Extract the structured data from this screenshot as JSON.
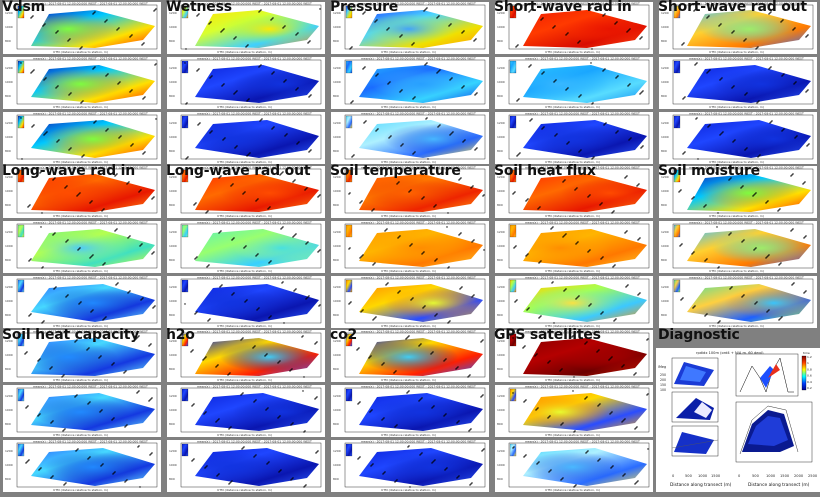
{
  "panels": [
    {
      "title": "Vdsm",
      "maps": [
        "jet-mix",
        "jet-mix",
        "jet-mix"
      ]
    },
    {
      "title": "Wetness",
      "maps": [
        "yellow-mix",
        "blue",
        "blue"
      ]
    },
    {
      "title": "Pressure",
      "maps": [
        "blue-yellow",
        "cyan-blue",
        "cyan-mix"
      ]
    },
    {
      "title": "Short-wave rad in",
      "maps": [
        "red",
        "cyan",
        "blue"
      ]
    },
    {
      "title": "Short-wave rad out",
      "maps": [
        "cyan-yellow",
        "blue",
        "blue"
      ]
    },
    {
      "title": "Long-wave rad in",
      "maps": [
        "red-orange",
        "green-yellow",
        "blue-cyan"
      ]
    },
    {
      "title": "Long-wave rad out",
      "maps": [
        "red-orange",
        "green-cyan",
        "blue"
      ]
    },
    {
      "title": "Soil temperature",
      "maps": [
        "orange-red",
        "orange",
        "orange-mix"
      ]
    },
    {
      "title": "Soil heat flux",
      "maps": [
        "red-orange",
        "orange",
        "yellow-cyan"
      ]
    },
    {
      "title": "Soil moisture",
      "maps": [
        "jet-mix",
        "cyan-yellow",
        "green-mix"
      ]
    },
    {
      "title": "Soil heat capacity",
      "maps": [
        "blue-cyan",
        "blue-cyan",
        "blue-cyan"
      ]
    },
    {
      "title": "h2o",
      "maps": [
        "blue-hot",
        "blue",
        "blue"
      ]
    },
    {
      "title": "co2",
      "maps": [
        "blue-hot",
        "blue",
        "blue"
      ]
    },
    {
      "title": "GPS satellites",
      "maps": [
        "darkred",
        "orange-mix",
        "cyan-mix"
      ]
    }
  ],
  "diagnostic": {
    "title": "Diagnostic",
    "header_text": "rpdidx 100m (ord4 + N/A m, 60 deg))",
    "xlabel_left": "Distance along transect (m)",
    "xlabel_right": "Distance along transect (m)",
    "xticks_left": [
      "0",
      "500",
      "1000",
      "1500"
    ],
    "xticks_right": [
      "0",
      "500",
      "1000",
      "1500",
      "2000",
      "2500"
    ],
    "yticks_left": [
      "250",
      "200",
      "150",
      "100"
    ],
    "legend_label": "time",
    "legend_ticks": [
      "1.2",
      "1",
      "0.8",
      "0.6",
      "0.4",
      "0.2"
    ]
  },
  "colors": {
    "background": "#808080",
    "panel": "#ffffff",
    "title": "#111111"
  }
}
